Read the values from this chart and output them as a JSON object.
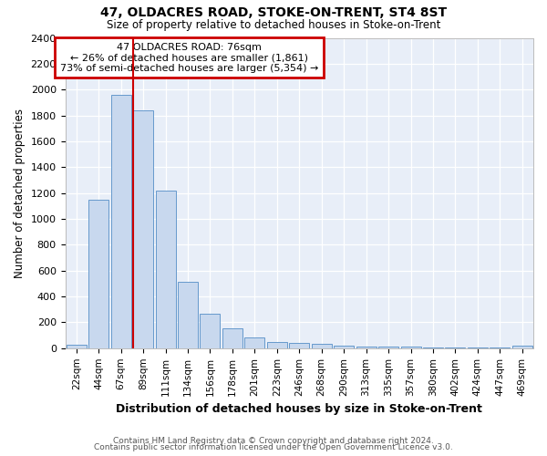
{
  "title1": "47, OLDACRES ROAD, STOKE-ON-TRENT, ST4 8ST",
  "title2": "Size of property relative to detached houses in Stoke-on-Trent",
  "xlabel": "Distribution of detached houses by size in Stoke-on-Trent",
  "ylabel": "Number of detached properties",
  "footnote1": "Contains HM Land Registry data © Crown copyright and database right 2024.",
  "footnote2": "Contains public sector information licensed under the Open Government Licence v3.0.",
  "annotation_title": "47 OLDACRES ROAD: 76sqm",
  "annotation_line2": "← 26% of detached houses are smaller (1,861)",
  "annotation_line3": "73% of semi-detached houses are larger (5,354) →",
  "bar_labels": [
    "22sqm",
    "44sqm",
    "67sqm",
    "89sqm",
    "111sqm",
    "134sqm",
    "156sqm",
    "178sqm",
    "201sqm",
    "223sqm",
    "246sqm",
    "268sqm",
    "290sqm",
    "313sqm",
    "335sqm",
    "357sqm",
    "380sqm",
    "402sqm",
    "424sqm",
    "447sqm",
    "469sqm"
  ],
  "bar_values": [
    30,
    1150,
    1960,
    1840,
    1220,
    515,
    265,
    155,
    85,
    45,
    40,
    35,
    20,
    15,
    15,
    10,
    8,
    5,
    5,
    5,
    20
  ],
  "bar_color": "#c8d8ee",
  "bar_edge_color": "#6699cc",
  "vline_color": "#cc0000",
  "vline_pos": 2.55,
  "ylim": [
    0,
    2400
  ],
  "yticks": [
    0,
    200,
    400,
    600,
    800,
    1000,
    1200,
    1400,
    1600,
    1800,
    2000,
    2200,
    2400
  ],
  "annotation_box_edge": "#cc0000",
  "fig_bg_color": "#ffffff",
  "plot_bg_color": "#e8eef8"
}
